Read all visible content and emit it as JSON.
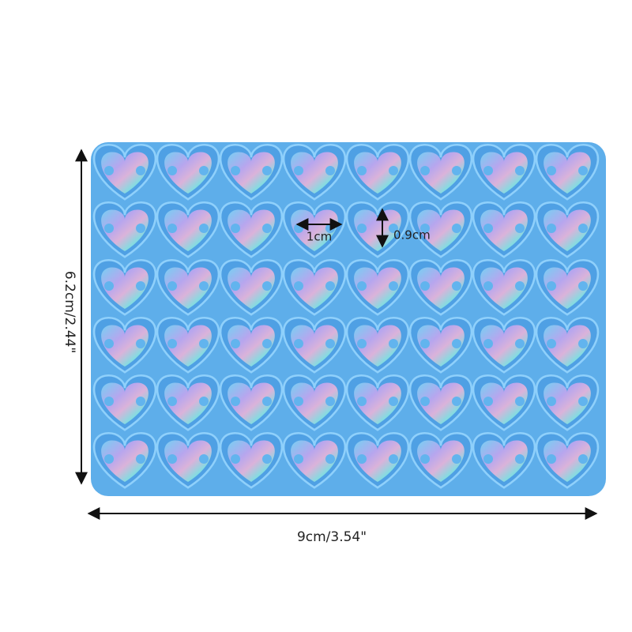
{
  "dimensions": {
    "height": "6.2cm/2.44\"",
    "width": "9cm/3.54\"",
    "heart_width": "1cm",
    "heart_height": "0.9cm"
  }
}
